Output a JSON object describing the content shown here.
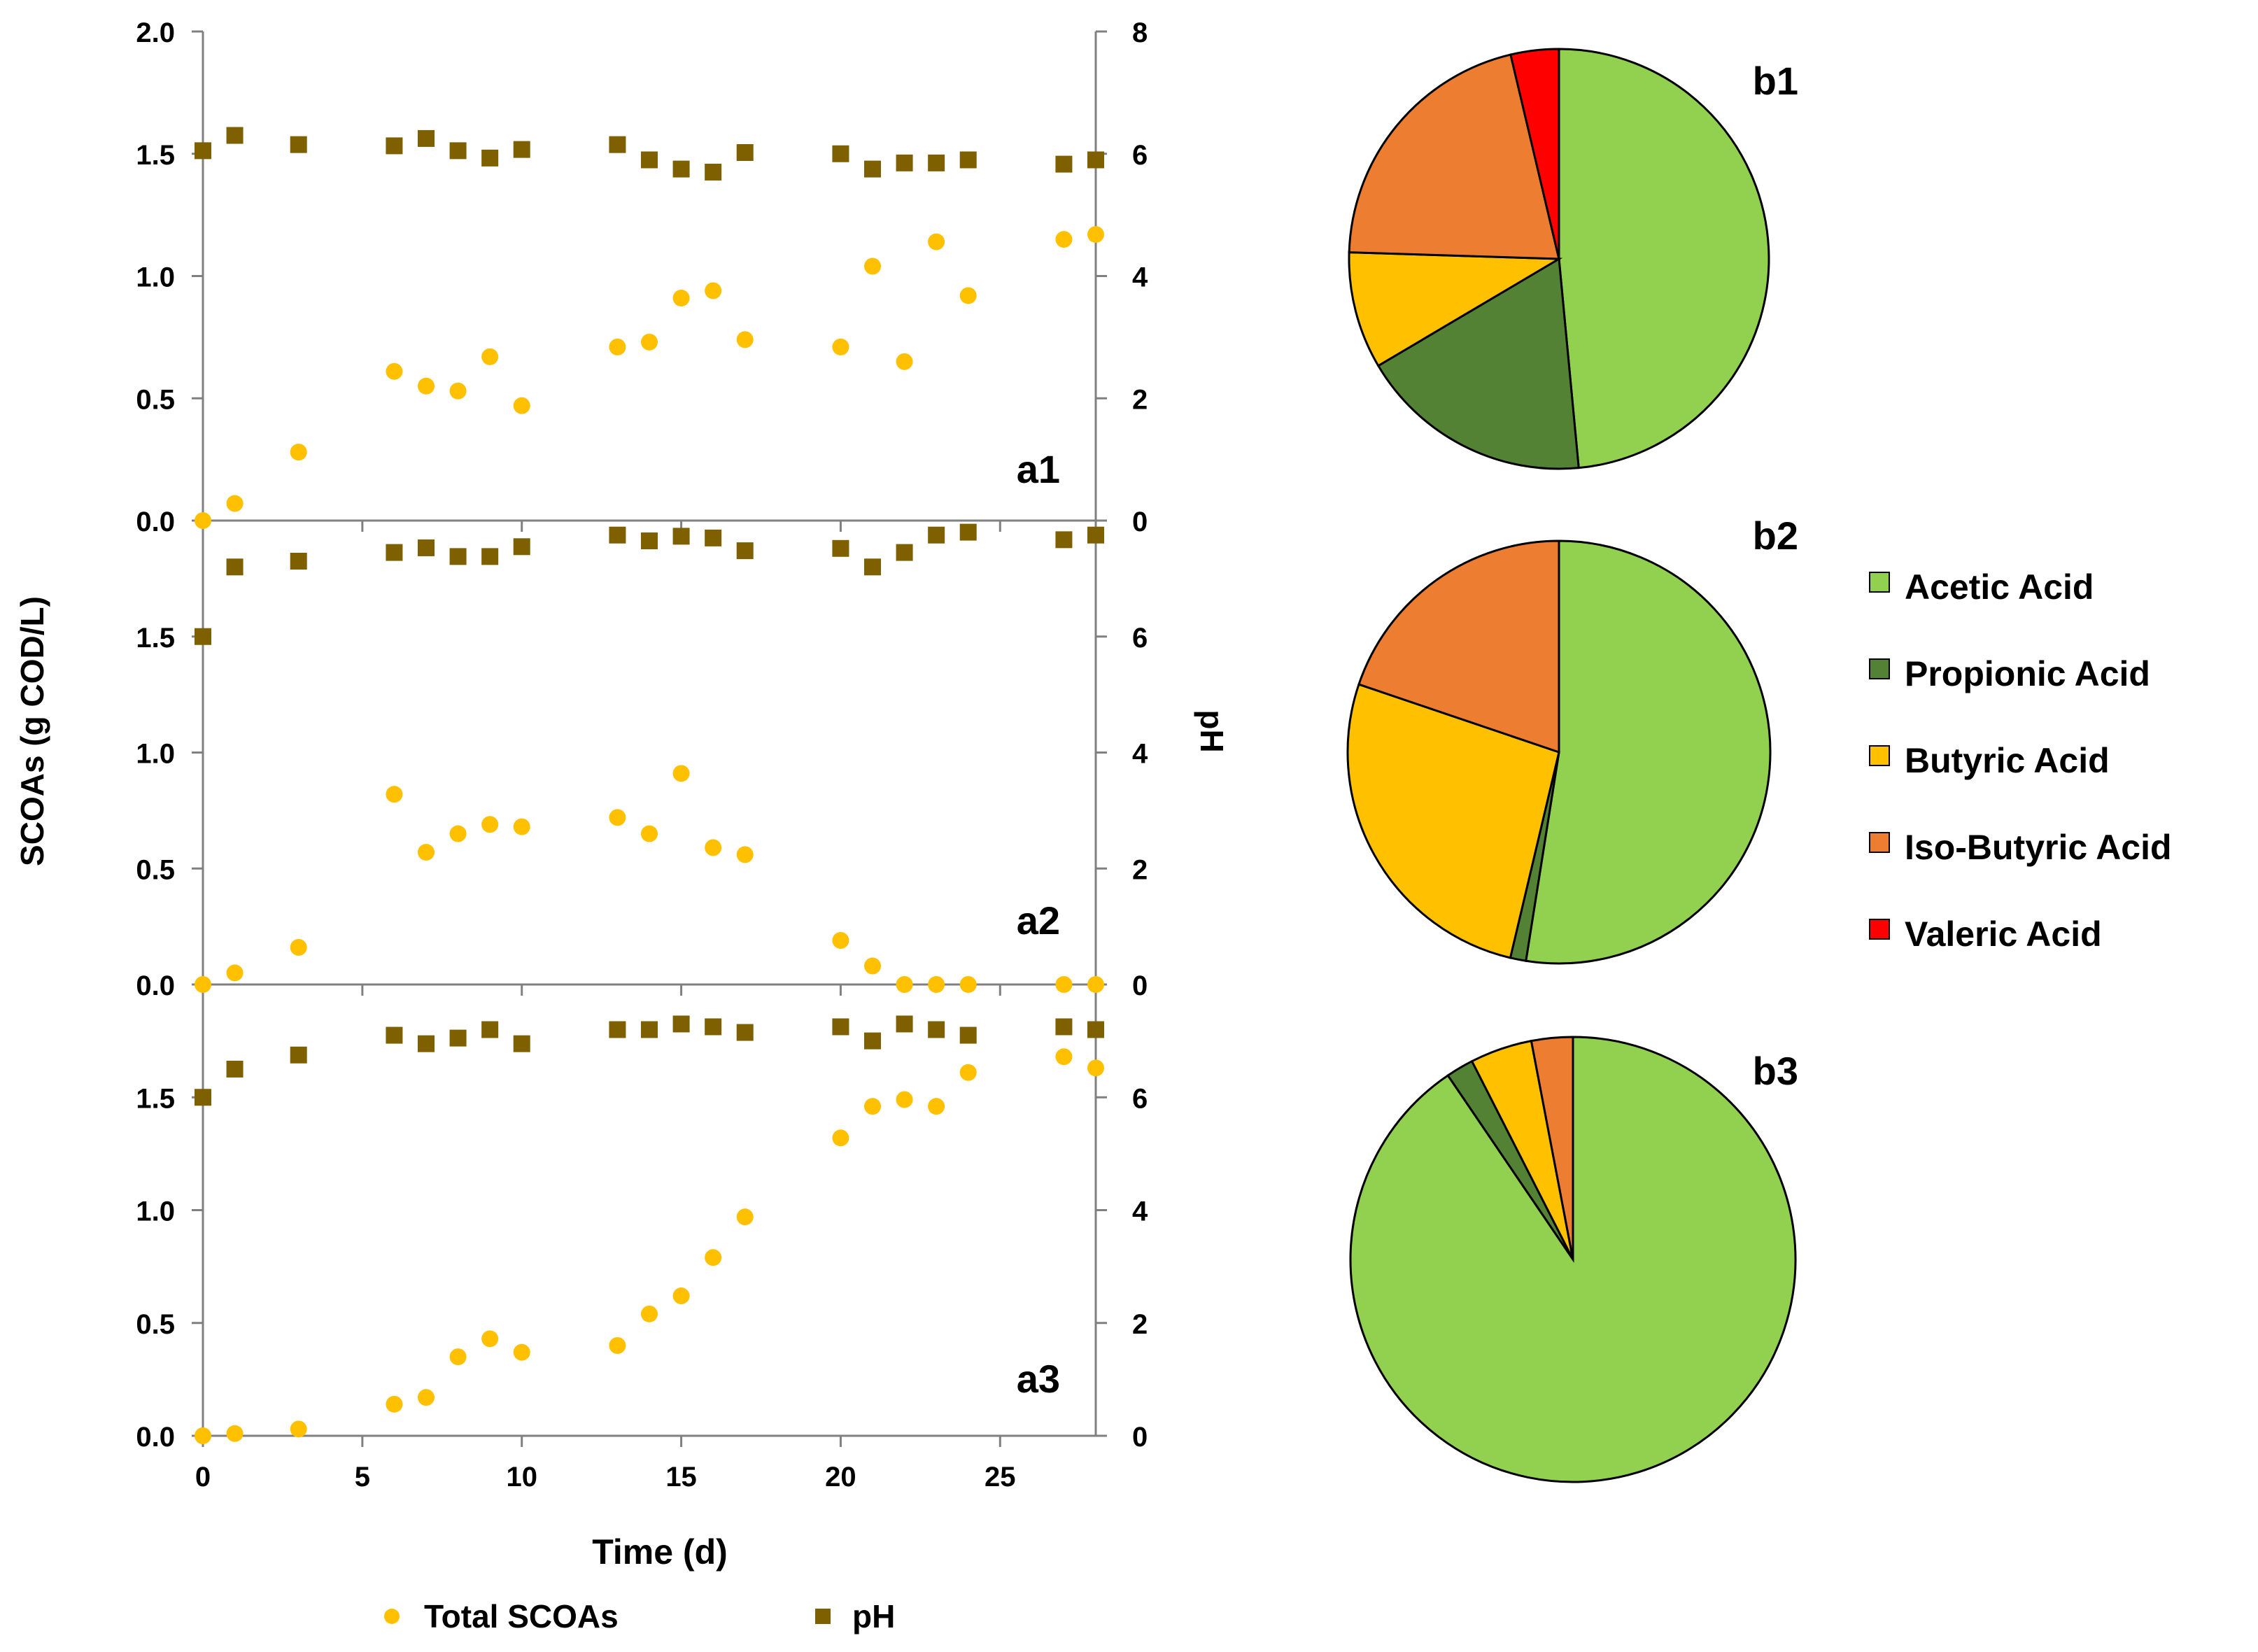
{
  "chart_data": [
    {
      "id": "a1",
      "type": "scatter",
      "panel_label": "a1",
      "x_ticks": [
        "0",
        "5",
        "10",
        "15",
        "20",
        "25"
      ],
      "y_left_ticks": [
        "0.0",
        "0.5",
        "1.0",
        "1.5",
        "2.0"
      ],
      "y_right_ticks": [
        "0",
        "2",
        "4",
        "6",
        "8"
      ],
      "xlim": [
        0,
        28
      ],
      "ylim_left": [
        0,
        2.0
      ],
      "ylim_right": [
        0,
        8
      ],
      "series": [
        {
          "name": "Total SCOAs",
          "axis": "left",
          "marker": "circle",
          "color": "#FFC000",
          "x": [
            0,
            1,
            3,
            6,
            7,
            8,
            9,
            10,
            13,
            14,
            15,
            16,
            17,
            20,
            21,
            22,
            23,
            24,
            27,
            28
          ],
          "y": [
            0.0,
            0.07,
            0.28,
            0.61,
            0.55,
            0.53,
            0.67,
            0.47,
            0.71,
            0.73,
            0.91,
            0.94,
            0.74,
            0.71,
            1.04,
            0.65,
            1.14,
            0.92,
            1.15,
            1.17
          ]
        },
        {
          "name": "pH",
          "axis": "right",
          "marker": "square",
          "color": "#7F6000",
          "x": [
            0,
            1,
            3,
            6,
            7,
            8,
            9,
            10,
            13,
            14,
            15,
            16,
            17,
            20,
            21,
            22,
            23,
            24,
            27,
            28
          ],
          "y": [
            6.05,
            6.3,
            6.15,
            6.13,
            6.25,
            6.05,
            5.93,
            6.07,
            6.15,
            5.9,
            5.75,
            5.7,
            6.02,
            6.0,
            5.75,
            5.85,
            5.85,
            5.9,
            5.83,
            5.9
          ]
        }
      ]
    },
    {
      "id": "a2",
      "type": "scatter",
      "panel_label": "a2",
      "x_ticks": [
        "0",
        "5",
        "10",
        "15",
        "20",
        "25"
      ],
      "y_left_ticks": [
        "0.0",
        "0.5",
        "1.0",
        "1.5"
      ],
      "y_right_ticks": [
        "0",
        "2",
        "4",
        "6"
      ],
      "xlim": [
        0,
        28
      ],
      "ylim_left": [
        0,
        2.0
      ],
      "ylim_right": [
        0,
        8
      ],
      "series": [
        {
          "name": "Total SCOAs",
          "axis": "left",
          "marker": "circle",
          "color": "#FFC000",
          "x": [
            0,
            1,
            3,
            6,
            7,
            8,
            9,
            10,
            13,
            14,
            15,
            16,
            17,
            20,
            21,
            22,
            23,
            24,
            27,
            28
          ],
          "y": [
            0.0,
            0.05,
            0.16,
            0.82,
            0.57,
            0.65,
            0.69,
            0.68,
            0.72,
            0.65,
            0.91,
            0.59,
            0.56,
            0.19,
            0.08,
            0.0,
            0.0,
            0.0,
            0.0,
            0.0
          ]
        },
        {
          "name": "pH",
          "axis": "right",
          "marker": "square",
          "color": "#7F6000",
          "x": [
            0,
            1,
            3,
            6,
            7,
            8,
            9,
            10,
            13,
            14,
            15,
            16,
            17,
            20,
            21,
            22,
            23,
            24,
            27,
            28
          ],
          "y": [
            6.0,
            7.2,
            7.3,
            7.45,
            7.53,
            7.38,
            7.38,
            7.55,
            7.75,
            7.65,
            7.73,
            7.7,
            7.48,
            7.52,
            7.2,
            7.45,
            7.75,
            7.8,
            7.67,
            7.75
          ]
        }
      ]
    },
    {
      "id": "a3",
      "type": "scatter",
      "panel_label": "a3",
      "x_ticks": [
        "0",
        "5",
        "10",
        "15",
        "20",
        "25"
      ],
      "y_left_ticks": [
        "0.0",
        "0.5",
        "1.0",
        "1.5"
      ],
      "y_right_ticks": [
        "0",
        "2",
        "4",
        "6"
      ],
      "xlim": [
        0,
        28
      ],
      "ylim_left": [
        0,
        2.0
      ],
      "ylim_right": [
        0,
        8
      ],
      "xlabel": "Time (d)",
      "series": [
        {
          "name": "Total SCOAs",
          "axis": "left",
          "marker": "circle",
          "color": "#FFC000",
          "x": [
            0,
            1,
            3,
            6,
            7,
            8,
            9,
            10,
            13,
            14,
            15,
            16,
            17,
            20,
            21,
            22,
            23,
            24,
            27,
            28
          ],
          "y": [
            0.0,
            0.01,
            0.03,
            0.14,
            0.17,
            0.35,
            0.43,
            0.37,
            0.4,
            0.54,
            0.62,
            0.79,
            0.97,
            1.32,
            1.46,
            1.49,
            1.46,
            1.61,
            1.68,
            1.63
          ]
        },
        {
          "name": "pH",
          "axis": "right",
          "marker": "square",
          "color": "#7F6000",
          "x": [
            0,
            1,
            3,
            6,
            7,
            8,
            9,
            10,
            13,
            14,
            15,
            16,
            17,
            20,
            21,
            22,
            23,
            24,
            27,
            28
          ],
          "y": [
            6.0,
            6.5,
            6.75,
            7.1,
            6.95,
            7.05,
            7.2,
            6.95,
            7.2,
            7.2,
            7.3,
            7.25,
            7.15,
            7.25,
            7.0,
            7.3,
            7.2,
            7.1,
            7.25,
            7.2
          ]
        }
      ]
    },
    {
      "id": "b1",
      "type": "pie",
      "panel_label": "b1",
      "slices": [
        {
          "name": "Acetic Acid",
          "value": 48.5,
          "color": "#92D050"
        },
        {
          "name": "Propionic Acid",
          "value": 18.0,
          "color": "#548235"
        },
        {
          "name": "Butyric Acid",
          "value": 9.0,
          "color": "#FFC000"
        },
        {
          "name": "Iso-Butyric Acid",
          "value": 20.8,
          "color": "#ED7D31"
        },
        {
          "name": "Valeric Acid",
          "value": 3.7,
          "color": "#FF0000"
        }
      ]
    },
    {
      "id": "b2",
      "type": "pie",
      "panel_label": "b2",
      "slices": [
        {
          "name": "Acetic Acid",
          "value": 52.5,
          "color": "#92D050"
        },
        {
          "name": "Propionic Acid",
          "value": 1.2,
          "color": "#548235"
        },
        {
          "name": "Butyric Acid",
          "value": 26.5,
          "color": "#FFC000"
        },
        {
          "name": "Iso-Butyric Acid",
          "value": 19.8,
          "color": "#ED7D31"
        },
        {
          "name": "Valeric Acid",
          "value": 0,
          "color": "#FF0000"
        }
      ]
    },
    {
      "id": "b3",
      "type": "pie",
      "panel_label": "b3",
      "slices": [
        {
          "name": "Acetic Acid",
          "value": 90.5,
          "color": "#92D050"
        },
        {
          "name": "Propionic Acid",
          "value": 2.0,
          "color": "#548235"
        },
        {
          "name": "Butyric Acid",
          "value": 4.5,
          "color": "#FFC000"
        },
        {
          "name": "Iso-Butyric Acid",
          "value": 3.0,
          "color": "#ED7D31"
        },
        {
          "name": "Valeric Acid",
          "value": 0,
          "color": "#FF0000"
        }
      ]
    }
  ],
  "axes": {
    "ylabel_left": "SCOAs (g COD/L)",
    "ylabel_right": "pH",
    "xlabel": "Time (d)"
  },
  "scatter_legend": [
    {
      "label": "Total SCOAs",
      "marker": "circle",
      "color": "#FFC000"
    },
    {
      "label": "pH",
      "marker": "square",
      "color": "#7F6000"
    }
  ],
  "pie_legend": [
    {
      "label": "Acetic Acid",
      "color": "#92D050"
    },
    {
      "label": "Propionic Acid",
      "color": "#548235"
    },
    {
      "label": "Butyric Acid",
      "color": "#FFC000"
    },
    {
      "label": "Iso-Butyric Acid",
      "color": "#ED7D31"
    },
    {
      "label": "Valeric Acid",
      "color": "#FF0000"
    }
  ]
}
